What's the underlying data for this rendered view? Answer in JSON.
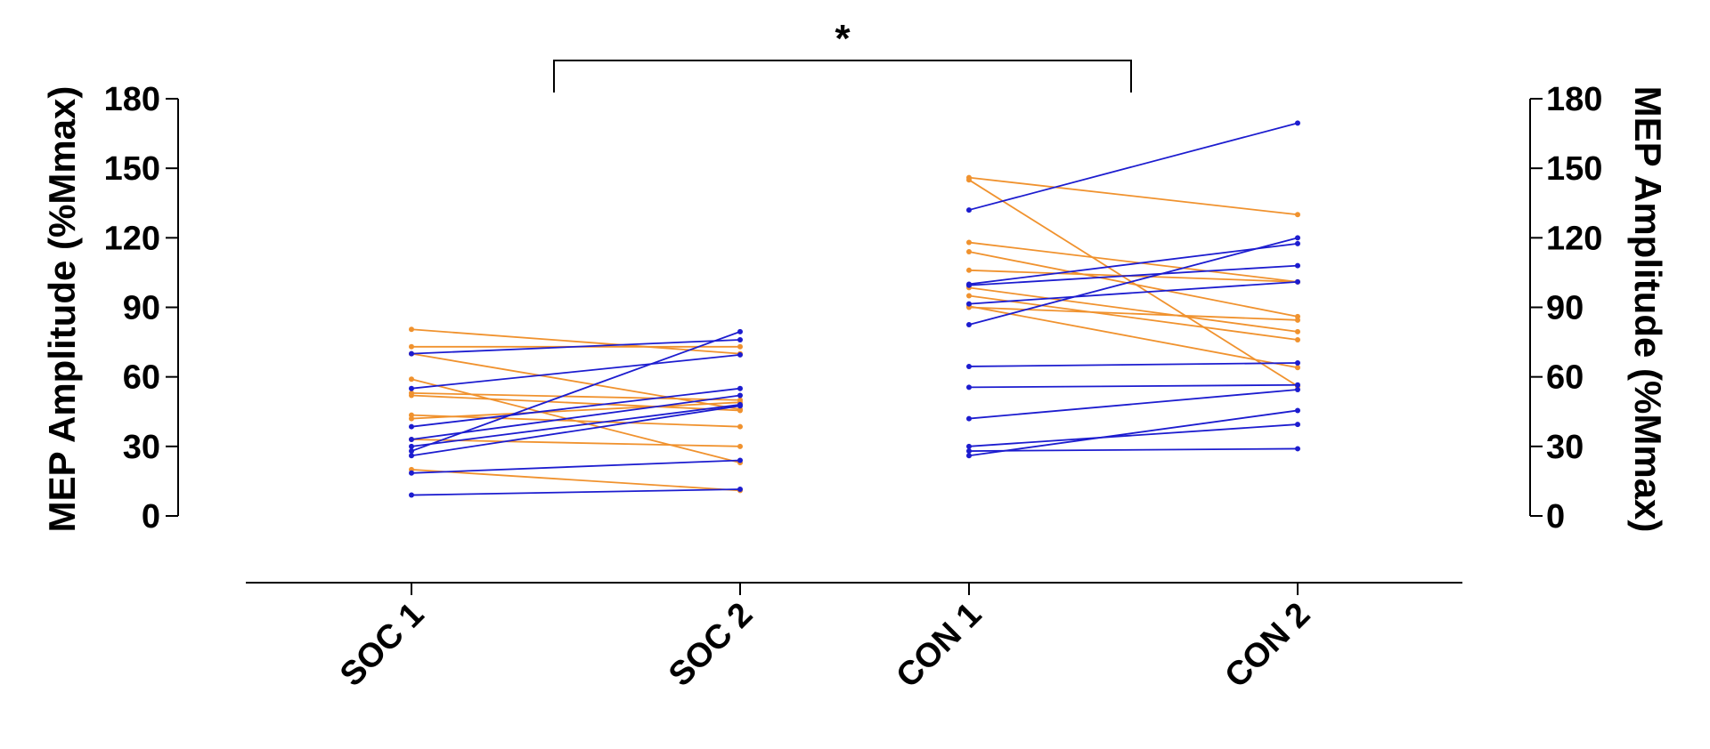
{
  "chart_data": {
    "type": "line",
    "categories": [
      "SOC 1",
      "SOC 2",
      "CON 1",
      "CON 2"
    ],
    "ylabel_left": "MEP Amplitude (%Mmax)",
    "ylabel_right": "MEP Amplitude (%Mmax)",
    "ylim": [
      0,
      180
    ],
    "yticks": [
      "0",
      "30",
      "60",
      "90",
      "120",
      "150",
      "180"
    ],
    "significance": {
      "from": "SOC 1",
      "to": "CON 1",
      "label": "*"
    },
    "colors": {
      "orange": "#F0922E",
      "blue": "#1C1CCF",
      "axis": "#000000"
    },
    "grid": false,
    "soc_pairs": [
      {
        "color": "orange",
        "values": [
          80.5,
          70
        ]
      },
      {
        "color": "orange",
        "values": [
          73,
          73
        ]
      },
      {
        "color": "orange",
        "values": [
          70,
          46
        ]
      },
      {
        "color": "orange",
        "values": [
          59,
          23
        ]
      },
      {
        "color": "orange",
        "values": [
          53,
          50
        ]
      },
      {
        "color": "orange",
        "values": [
          52,
          45.5
        ]
      },
      {
        "color": "orange",
        "values": [
          43.5,
          38.5
        ]
      },
      {
        "color": "orange",
        "values": [
          42,
          49
        ]
      },
      {
        "color": "orange",
        "values": [
          33,
          30
        ]
      },
      {
        "color": "orange",
        "values": [
          20,
          11
        ]
      },
      {
        "color": "blue",
        "values": [
          70,
          76
        ]
      },
      {
        "color": "blue",
        "values": [
          55,
          69.5
        ]
      },
      {
        "color": "blue",
        "values": [
          38.5,
          55
        ]
      },
      {
        "color": "blue",
        "values": [
          33,
          52
        ]
      },
      {
        "color": "blue",
        "values": [
          30,
          48
        ]
      },
      {
        "color": "blue",
        "values": [
          28,
          79.5
        ]
      },
      {
        "color": "blue",
        "values": [
          26,
          47.5
        ]
      },
      {
        "color": "blue",
        "values": [
          18.5,
          24
        ]
      },
      {
        "color": "blue",
        "values": [
          9,
          11.5
        ]
      }
    ],
    "con_pairs": [
      {
        "color": "orange",
        "values": [
          146,
          130
        ]
      },
      {
        "color": "orange",
        "values": [
          145,
          56
        ]
      },
      {
        "color": "orange",
        "values": [
          118,
          101
        ]
      },
      {
        "color": "orange",
        "values": [
          114,
          86
        ]
      },
      {
        "color": "orange",
        "values": [
          106,
          101
        ]
      },
      {
        "color": "orange",
        "values": [
          98.5,
          79.5
        ]
      },
      {
        "color": "orange",
        "values": [
          95,
          76
        ]
      },
      {
        "color": "orange",
        "values": [
          90.5,
          64
        ]
      },
      {
        "color": "orange",
        "values": [
          90,
          84.5
        ]
      },
      {
        "color": "blue",
        "values": [
          132,
          169.5
        ]
      },
      {
        "color": "blue",
        "values": [
          100,
          117.5
        ]
      },
      {
        "color": "blue",
        "values": [
          99.5,
          108
        ]
      },
      {
        "color": "blue",
        "values": [
          91.5,
          101
        ]
      },
      {
        "color": "blue",
        "values": [
          82.5,
          120
        ]
      },
      {
        "color": "blue",
        "values": [
          64.5,
          66
        ]
      },
      {
        "color": "blue",
        "values": [
          55.5,
          56.5
        ]
      },
      {
        "color": "blue",
        "values": [
          42,
          54.5
        ]
      },
      {
        "color": "blue",
        "values": [
          30,
          39.5
        ]
      },
      {
        "color": "blue",
        "values": [
          28,
          29
        ]
      },
      {
        "color": "blue",
        "values": [
          26,
          45.5
        ]
      }
    ]
  }
}
